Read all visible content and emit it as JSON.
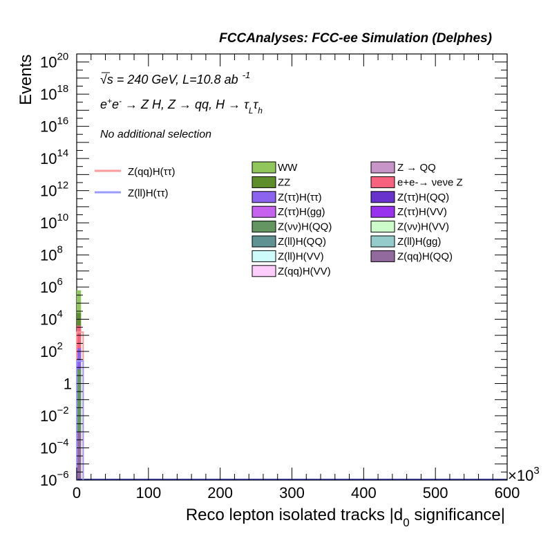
{
  "chart_data": {
    "type": "bar",
    "title": "FCCAnalyses: FCC-ee Simulation (Delphes)",
    "xlabel_main": "Reco lepton isolated tracks |d",
    "xlabel_sub": "0",
    "xlabel_tail": " significance|",
    "ylabel": "Events",
    "x_multiplier": "×10",
    "x_multiplier_exp": "3",
    "xlim": [
      0,
      600
    ],
    "ylim_log10": [
      -6,
      20.5
    ],
    "log_y": true,
    "xticks": [
      "0",
      "100",
      "200",
      "300",
      "400",
      "500",
      "600"
    ],
    "yticks": [
      {
        "exp": -6,
        "base": "10",
        "sup": "−6"
      },
      {
        "exp": -4,
        "base": "10",
        "sup": "−4"
      },
      {
        "exp": -2,
        "base": "10",
        "sup": "−2"
      },
      {
        "exp": 0,
        "base": "1",
        "sup": ""
      },
      {
        "exp": 2,
        "base": "10",
        "sup": "2"
      },
      {
        "exp": 4,
        "base": "10",
        "sup": "4"
      },
      {
        "exp": 6,
        "base": "10",
        "sup": "6"
      },
      {
        "exp": 8,
        "base": "10",
        "sup": "8"
      },
      {
        "exp": 10,
        "base": "10",
        "sup": "10"
      },
      {
        "exp": 12,
        "base": "10",
        "sup": "12"
      },
      {
        "exp": 14,
        "base": "10",
        "sup": "14"
      },
      {
        "exp": 16,
        "base": "10",
        "sup": "16"
      },
      {
        "exp": 18,
        "base": "10",
        "sup": "18"
      },
      {
        "exp": 20,
        "base": "10",
        "sup": "20"
      }
    ],
    "annotations": {
      "energy": "√s = 240 GeV, L=10.8 ab",
      "energy_sup": "-1",
      "process": "e+e- → Z H, Z → qq, H → τLτh",
      "selection": "No additional selection"
    },
    "bars": [
      {
        "name": "WW",
        "x_start": 0,
        "x_end": 6,
        "log10_top": 5.8,
        "color": "#90c65b"
      },
      {
        "name": "ZZ",
        "x_start": 0,
        "x_end": 6,
        "log10_top": 4.4,
        "color": "#5e8e2c"
      },
      {
        "name": "e+e-→ νeνe Z",
        "x_start": 0,
        "x_end": 6,
        "log10_top": 3.6,
        "color": "#f7637f"
      },
      {
        "name": "Z(ττ)H(ττ)",
        "x_start": 0,
        "x_end": 6,
        "log10_top": 2.2,
        "color": "#8c63ee"
      },
      {
        "name": "Z(νν)H(QQ)",
        "x_start": 0,
        "x_end": 6,
        "log10_top": 0.9,
        "color": "#62955f"
      },
      {
        "name": "Z(qq)H(QQ)",
        "x_start": 0,
        "x_end": 6,
        "log10_top": -3.0,
        "color": "#936a9e"
      }
    ],
    "lines": [
      {
        "name": "Z(qq)H(ττ)",
        "x_start": 0,
        "x_end": 9,
        "log10_value": 3.2,
        "color": "#ff9a9a"
      },
      {
        "name": "Z(ll)H(ττ)",
        "x_start": 0,
        "x_end": 9,
        "log10_value": 1.4,
        "color": "#9a9aff"
      }
    ],
    "legend_lines": [
      {
        "label": "Z(qq)H(ττ)",
        "color": "#ff9a9a"
      },
      {
        "label": "Z(ll)H(ττ)",
        "color": "#9a9aff"
      }
    ],
    "legend_col1": [
      {
        "label": "WW",
        "color": "#90c65b"
      },
      {
        "label": "ZZ",
        "color": "#5e8e2c"
      },
      {
        "label": "Z(ττ)H(ττ)",
        "color": "#8c63ee"
      },
      {
        "label": "Z(ττ)H(gg)",
        "color": "#c563ee"
      },
      {
        "label": "Z(νν)H(QQ)",
        "color": "#62955f"
      },
      {
        "label": "Z(ll)H(QQ)",
        "color": "#5e9293"
      },
      {
        "label": "Z(ll)H(VV)",
        "color": "#cdfbfc"
      },
      {
        "label": "Z(qq)H(VV)",
        "color": "#fdcdfc"
      }
    ],
    "legend_col2": [
      {
        "label": "Z → QQ",
        "color": "#c895c8"
      },
      {
        "label": "e+e-→ νeνe Z",
        "color": "#f7637f"
      },
      {
        "label": "Z(ττ)H(QQ)",
        "color": "#6832cc"
      },
      {
        "label": "Z(ττ)H(VV)",
        "color": "#9932ef"
      },
      {
        "label": "Z(νν)H(VV)",
        "color": "#cdfccb"
      },
      {
        "label": "Z(ll)H(gg)",
        "color": "#94cccc"
      },
      {
        "label": "Z(qq)H(QQ)",
        "color": "#936a9e"
      }
    ]
  }
}
